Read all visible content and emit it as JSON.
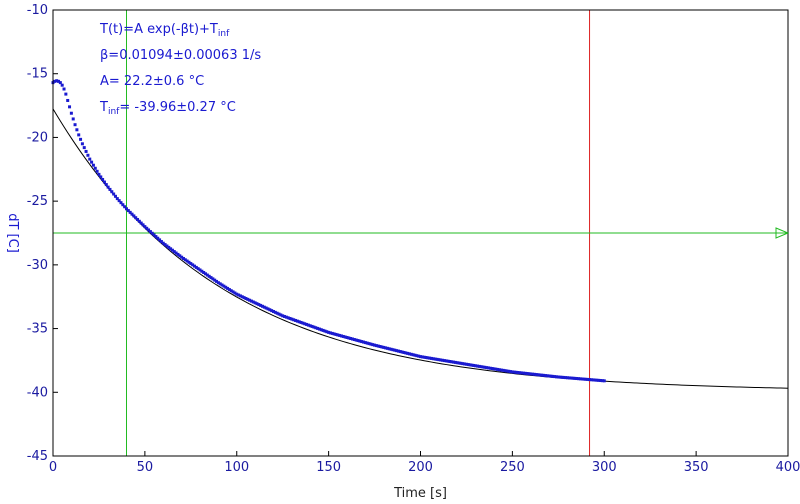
{
  "chart_data": {
    "type": "scatter",
    "xlabel": "Time [s]",
    "ylabel": "dT [C]",
    "xlim": [
      0,
      400
    ],
    "ylim": [
      -45,
      -10
    ],
    "x_ticks": [
      0,
      50,
      100,
      150,
      200,
      250,
      300,
      350,
      400
    ],
    "y_ticks": [
      -10,
      -15,
      -20,
      -25,
      -30,
      -35,
      -40,
      -45
    ],
    "grid": false,
    "fit": {
      "equation_prefix": "T(t)=A exp(-βt)+T",
      "equation_sub": "inf",
      "beta_text": "β=0.01094±0.00063 1/s",
      "A_text": "A= 22.2±0.6 °C",
      "tinf_prefix": "T",
      "tinf_sub": "inf",
      "tinf_suffix": "= -39.96±0.27 °C",
      "beta": 0.01094,
      "A": 22.2,
      "T_inf": -39.96,
      "x_range": [
        0,
        400
      ]
    },
    "series": [
      {
        "color": "#1a1ad0",
        "points": [
          [
            0,
            -15.7
          ],
          [
            1,
            -15.6
          ],
          [
            2,
            -15.55
          ],
          [
            3,
            -15.6
          ],
          [
            4,
            -15.7
          ],
          [
            5,
            -15.9
          ],
          [
            6,
            -16.2
          ],
          [
            7,
            -16.6
          ],
          [
            8,
            -17.1
          ],
          [
            9,
            -17.6
          ],
          [
            10,
            -18.1
          ],
          [
            12,
            -19.0
          ],
          [
            14,
            -19.8
          ],
          [
            16,
            -20.5
          ],
          [
            18,
            -21.1
          ],
          [
            20,
            -21.7
          ],
          [
            25,
            -22.9
          ],
          [
            30,
            -23.9
          ],
          [
            35,
            -24.8
          ],
          [
            40,
            -25.6
          ],
          [
            50,
            -27.0
          ],
          [
            60,
            -28.3
          ],
          [
            70,
            -29.4
          ],
          [
            80,
            -30.4
          ],
          [
            90,
            -31.4
          ],
          [
            100,
            -32.3
          ],
          [
            125,
            -34.0
          ],
          [
            150,
            -35.3
          ],
          [
            175,
            -36.3
          ],
          [
            200,
            -37.2
          ],
          [
            225,
            -37.8
          ],
          [
            250,
            -38.4
          ],
          [
            275,
            -38.8
          ],
          [
            300,
            -39.1
          ]
        ]
      }
    ],
    "cursors": {
      "vertical_green_x": 40,
      "vertical_red_x": 292,
      "horizontal_green_y": -27.5
    },
    "colors": {
      "points": "#1a1ad0",
      "fit": "#000000",
      "cursor_green": "#22bb22",
      "cursor_red": "#dd2222",
      "tick_text": "#1a1aa0"
    }
  }
}
